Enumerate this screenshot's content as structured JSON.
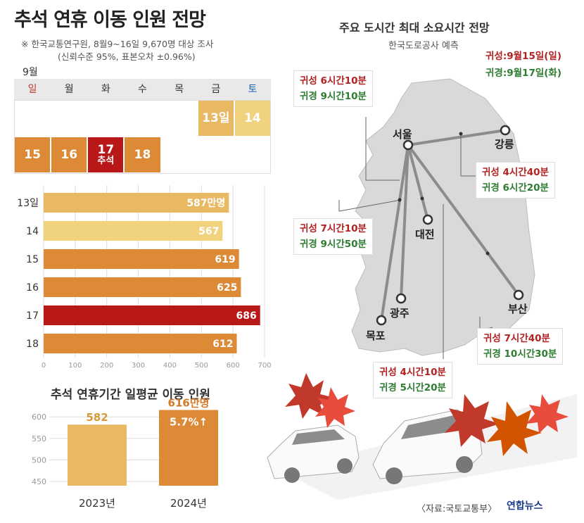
{
  "title": "추석 연휴 이동 인원 전망",
  "notes": [
    "※ 한국교통연구원, 8월9~16일 9,670명 대상 조사",
    "(신뢰수준 95%, 표본오차 ±0.96%)"
  ],
  "calendar": {
    "month": "9월",
    "weekdays": [
      "일",
      "월",
      "화",
      "수",
      "목",
      "금",
      "토"
    ],
    "cells": [
      {
        "row": 0,
        "col": 5,
        "label": "13일",
        "sub": "",
        "color": "#e8b862"
      },
      {
        "row": 0,
        "col": 6,
        "label": "14",
        "sub": "",
        "color": "#f1d27f"
      },
      {
        "row": 1,
        "col": 0,
        "label": "15",
        "sub": "",
        "color": "#dc8a36"
      },
      {
        "row": 1,
        "col": 1,
        "label": "16",
        "sub": "",
        "color": "#dc8a36"
      },
      {
        "row": 1,
        "col": 2,
        "label": "17",
        "sub": "추석",
        "color": "#b81818"
      },
      {
        "row": 1,
        "col": 3,
        "label": "18",
        "sub": "",
        "color": "#dc8a36"
      }
    ]
  },
  "chart_data": [
    {
      "type": "bar",
      "orientation": "horizontal",
      "categories": [
        "13일",
        "14",
        "15",
        "16",
        "17",
        "18"
      ],
      "values": [
        587,
        567,
        619,
        625,
        686,
        612
      ],
      "value_labels": [
        "587만명",
        "567",
        "619",
        "625",
        "686",
        "612"
      ],
      "colors": [
        "#e8b862",
        "#f1d27f",
        "#dc8a36",
        "#dc8a36",
        "#b81818",
        "#dc8a36"
      ],
      "xlim": [
        0,
        700
      ],
      "xticks": [
        "0",
        "100",
        "200",
        "300",
        "400",
        "500",
        "600",
        "700"
      ],
      "grid": true
    },
    {
      "type": "bar",
      "title": "추석 연휴기간 일평균 이동 인원",
      "categories": [
        "2023년",
        "2024년"
      ],
      "values": [
        582,
        616
      ],
      "value_labels": [
        "582",
        "616만명"
      ],
      "annotation": "5.7%↑",
      "colors": [
        "#e8b862",
        "#dc8a36"
      ],
      "ylim": [
        440,
        620
      ],
      "yticks": [
        "450",
        "500",
        "550",
        "600"
      ]
    }
  ],
  "map": {
    "title": "주요 도시간 최대 소요시간 전망",
    "subtitle": "한국도로공사 예측",
    "legend_go": "귀성:9월15일(일)",
    "legend_back": "귀경:9월17일(화)",
    "cities": [
      "서울",
      "강릉",
      "대전",
      "광주",
      "목포",
      "부산"
    ],
    "routes": [
      {
        "go": "귀성 6시간10분",
        "back": "귀경 9시간10분"
      },
      {
        "go": "귀성 4시간40분",
        "back": "귀경 6시간20분"
      },
      {
        "go": "귀성 7시간10분",
        "back": "귀경 9시간50분"
      },
      {
        "go": "귀성 7시간40분",
        "back": "귀경 10시간30분"
      },
      {
        "go": "귀성 4시간10분",
        "back": "귀경 5시간20분"
      }
    ]
  },
  "source": "〈자료:국토교통부〉",
  "logo": "연합뉴스"
}
